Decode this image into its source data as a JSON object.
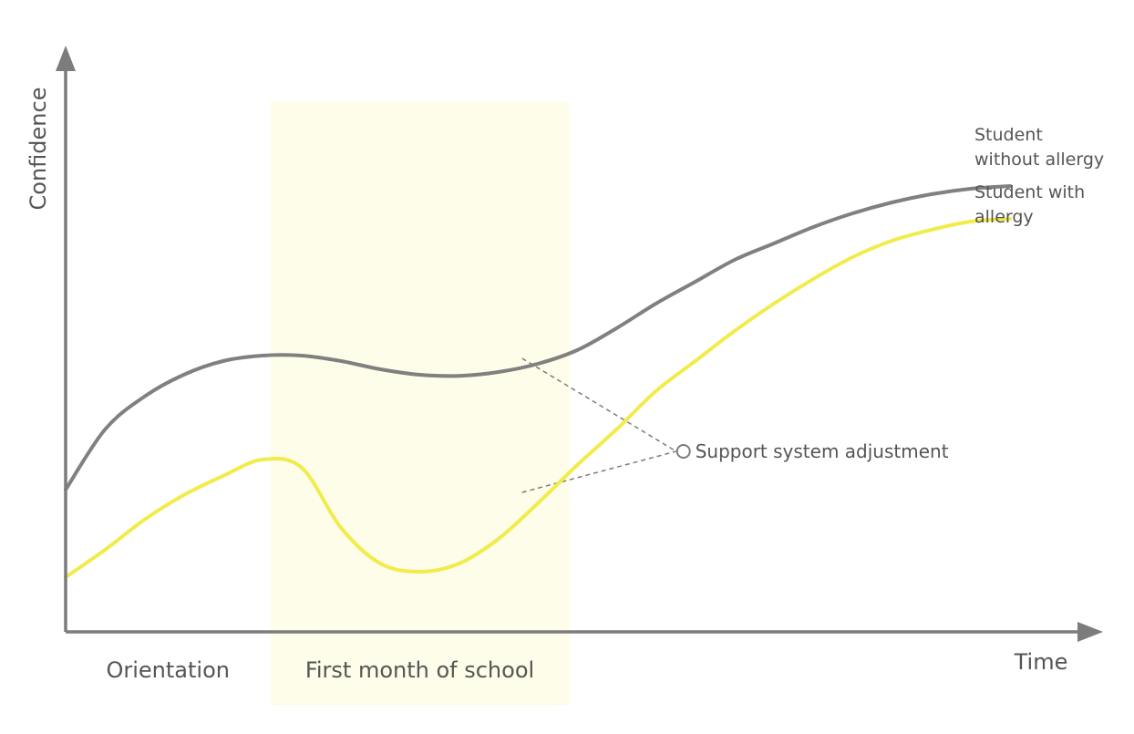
{
  "chart_data": {
    "type": "line",
    "xlabel": "Time",
    "ylabel": "Confidence",
    "grid": false,
    "x": [
      0,
      1,
      2,
      3,
      4,
      5,
      6,
      7,
      8,
      9,
      10,
      11,
      12,
      13,
      14,
      15,
      16,
      17,
      18,
      19,
      20,
      21,
      22,
      23,
      24,
      25
    ],
    "xlim": [
      0,
      24
    ],
    "ylim": [
      0,
      10
    ],
    "phases": [
      {
        "label": "Orientation",
        "range": [
          0,
          5.2
        ],
        "highlighted": false
      },
      {
        "label": "First month of school",
        "range": [
          5.2,
          12.8
        ],
        "highlighted": true
      }
    ],
    "series": [
      {
        "name": "Student\nwithout allergy",
        "color": "#808080",
        "values": [
          2.6,
          3.7,
          4.3,
          4.7,
          4.95,
          5.05,
          5.05,
          4.95,
          4.8,
          4.7,
          4.68,
          4.75,
          4.9,
          5.15,
          5.55,
          6.0,
          6.4,
          6.8,
          7.1,
          7.4,
          7.65,
          7.85,
          8.0,
          8.1,
          8.15,
          null
        ]
      },
      {
        "name": "Student with\nallergy",
        "color": "#f1ec4b",
        "values": [
          1.0,
          1.5,
          2.05,
          2.5,
          2.85,
          3.15,
          3.0,
          1.9,
          1.25,
          1.1,
          1.25,
          1.7,
          2.35,
          3.05,
          3.7,
          4.4,
          4.95,
          5.5,
          6.0,
          6.45,
          6.85,
          7.15,
          7.35,
          7.5,
          7.55,
          null
        ]
      }
    ],
    "annotations": [
      {
        "text": "Support system adjustment",
        "x": 15.7,
        "y": 3.3,
        "points_to": [
          [
            11.6,
            5.0
          ],
          [
            11.6,
            2.55
          ]
        ]
      }
    ]
  }
}
